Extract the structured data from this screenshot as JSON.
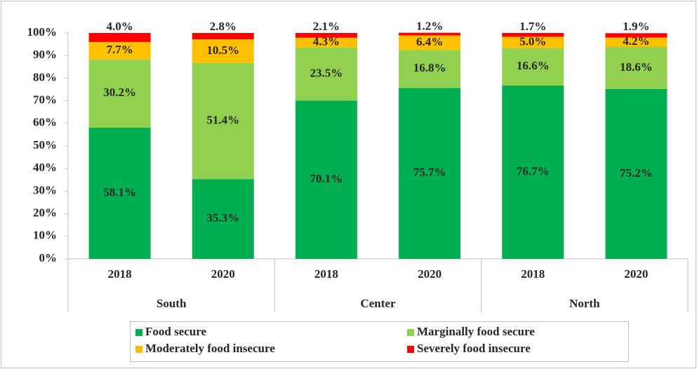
{
  "chart_data": {
    "type": "stacked_bar",
    "categories": [
      "2018",
      "2020",
      "2018",
      "2020",
      "2018",
      "2020"
    ],
    "groups": [
      "South",
      "Center",
      "North"
    ],
    "series": [
      {
        "name": "Food secure",
        "color": "#00b050",
        "values": [
          58.1,
          35.3,
          70.1,
          75.7,
          76.7,
          75.2
        ],
        "value_labels": [
          "58.1%",
          "35.3%",
          "70.1%",
          "75.7%",
          "76.7%",
          "75.2%"
        ]
      },
      {
        "name": "Marginally food secure",
        "color": "#92d050",
        "values": [
          30.2,
          51.4,
          23.5,
          16.8,
          16.6,
          18.6
        ],
        "value_labels": [
          "30.2%",
          "51.4%",
          "23.5%",
          "16.8%",
          "16.6%",
          "18.6%"
        ]
      },
      {
        "name": "Moderately food insecure",
        "color": "#ffc000",
        "values": [
          7.7,
          10.5,
          4.3,
          6.4,
          5.0,
          4.2
        ],
        "value_labels": [
          "7.7%",
          "10.5%",
          "4.3%",
          "6.4%",
          "5.0%",
          "4.2%"
        ]
      },
      {
        "name": "Severely food insecure",
        "color": "#ff0000",
        "values": [
          4.0,
          2.8,
          2.1,
          1.2,
          1.7,
          1.9
        ],
        "value_labels": [
          "4.0%",
          "2.8%",
          "2.1%",
          "1.2%",
          "1.7%",
          "1.9%"
        ]
      }
    ],
    "ylim": [
      0,
      100
    ],
    "yticks": [
      {
        "value": 0,
        "label": "0%"
      },
      {
        "value": 10,
        "label": "10%"
      },
      {
        "value": 20,
        "label": "20%"
      },
      {
        "value": 30,
        "label": "30%"
      },
      {
        "value": 40,
        "label": "40%"
      },
      {
        "value": 50,
        "label": "50%"
      },
      {
        "value": 60,
        "label": "60%"
      },
      {
        "value": 70,
        "label": "70%"
      },
      {
        "value": 80,
        "label": "80%"
      },
      {
        "value": 90,
        "label": "90%"
      },
      {
        "value": 100,
        "label": "100%"
      }
    ],
    "legend": "bottom"
  }
}
